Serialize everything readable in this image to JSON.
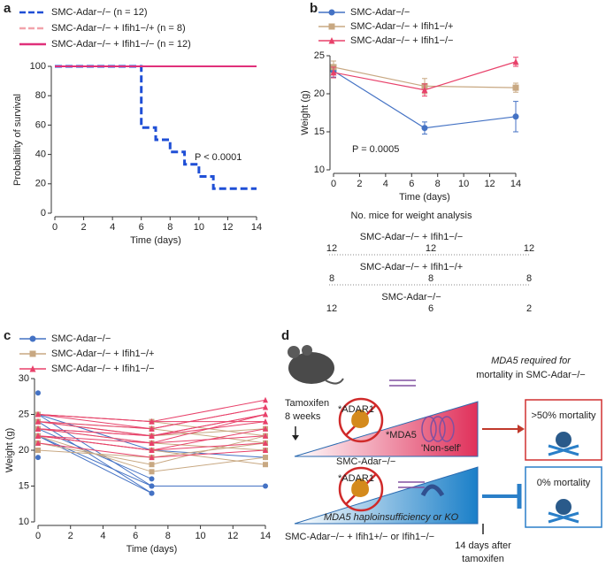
{
  "panel_labels": [
    "a",
    "b",
    "c",
    "d"
  ],
  "chart_data": [
    {
      "type": "step",
      "xlabel": "Time (days)",
      "ylabel": "Probability of survival",
      "xlim": [
        0,
        14
      ],
      "xticks": [
        0,
        2,
        4,
        6,
        8,
        10,
        12,
        14
      ],
      "ylim": [
        0,
        100
      ],
      "yticks": [
        0,
        20,
        40,
        60,
        80,
        100
      ],
      "annotation": "P < 0.0001",
      "series": [
        {
          "name": "SMC-Adar−/− (n = 12)",
          "color": "#1f4fd6",
          "dash": true,
          "x": [
            0,
            6,
            7,
            8,
            9,
            10,
            11,
            14
          ],
          "values": [
            100,
            58.3,
            50,
            41.7,
            33.3,
            25,
            16.7,
            16.7
          ]
        },
        {
          "name": "SMC-Adar−/− + Ifih1−/+ (n = 8)",
          "color": "#f2a3ab",
          "dash": true,
          "x": [
            0,
            14
          ],
          "values": [
            100,
            100
          ]
        },
        {
          "name": "SMC-Adar−/− + Ifih1−/− (n = 12)",
          "color": "#e0307a",
          "dash": false,
          "x": [
            0,
            14
          ],
          "values": [
            100,
            100
          ]
        }
      ]
    },
    {
      "type": "errorbar-line",
      "xlabel": "Time (days)",
      "ylabel": "Weight (g)",
      "xlim": [
        0,
        14
      ],
      "xticks": [
        0,
        2,
        4,
        6,
        8,
        10,
        12,
        14
      ],
      "ylim": [
        10,
        25
      ],
      "yticks": [
        10,
        15,
        20,
        25
      ],
      "annotation": "P = 0.0005",
      "x": [
        0,
        7,
        14
      ],
      "series": [
        {
          "name": "SMC-Adar−/−",
          "color": "#4472c4",
          "marker": "circle",
          "values": [
            23,
            15.5,
            17
          ],
          "errors": [
            0.8,
            0.8,
            2
          ]
        },
        {
          "name": "SMC-Adar−/− + Ifih1−/+",
          "color": "#c8a882",
          "marker": "square",
          "values": [
            23.5,
            21,
            20.8
          ],
          "errors": [
            0.8,
            1,
            0.6
          ]
        },
        {
          "name": "SMC-Adar−/− + Ifih1−/−",
          "color": "#e8416a",
          "marker": "triangle",
          "values": [
            22.8,
            20.5,
            24.2
          ],
          "errors": [
            0.7,
            0.8,
            0.6
          ]
        }
      ]
    },
    {
      "type": "line",
      "xlabel": "Time (days)",
      "ylabel": "Weight (g)",
      "xlim": [
        0,
        14
      ],
      "xticks": [
        0,
        2,
        4,
        6,
        8,
        10,
        12,
        14
      ],
      "ylim": [
        10,
        30
      ],
      "yticks": [
        10,
        15,
        20,
        25,
        30
      ],
      "x": [
        0,
        7,
        14
      ],
      "series": [
        {
          "name": "SMC-Adar−/−",
          "color": "#4472c4",
          "marker": "circle",
          "mice": [
            [
              28,
              null,
              null
            ],
            [
              25,
              20,
              19
            ],
            [
              25,
              15,
              15
            ],
            [
              24,
              14,
              null
            ],
            [
              23,
              16,
              null
            ],
            [
              22,
              14,
              null
            ],
            [
              22,
              15,
              null
            ],
            [
              21,
              null,
              null
            ],
            [
              20,
              null,
              null
            ],
            [
              19,
              null,
              null
            ],
            [
              23,
              null,
              null
            ],
            [
              25,
              null,
              null
            ]
          ]
        },
        {
          "name": "SMC-Adar−/− + Ifih1−/+",
          "color": "#c8a882",
          "marker": "square",
          "mice": [
            [
              25,
              24,
              22
            ],
            [
              24,
              23,
              21
            ],
            [
              24,
              22,
              23
            ],
            [
              23,
              21,
              20
            ],
            [
              22,
              17,
              19
            ],
            [
              22,
              20,
              18
            ],
            [
              21,
              18,
              22
            ],
            [
              20,
              19,
              21
            ]
          ]
        },
        {
          "name": "SMC-Adar−/− + Ifih1−/−",
          "color": "#e8416a",
          "marker": "triangle",
          "mice": [
            [
              25,
              24,
              27
            ],
            [
              25,
              23,
              26
            ],
            [
              24,
              22,
              25
            ],
            [
              23,
              21,
              25
            ],
            [
              23,
              22,
              24
            ],
            [
              22,
              20,
              23
            ],
            [
              22,
              21,
              22
            ],
            [
              24,
              23,
              26
            ],
            [
              21,
              19,
              20
            ],
            [
              23,
              22,
              25
            ],
            [
              25,
              24,
              24
            ],
            [
              22,
              20,
              21
            ]
          ]
        }
      ]
    }
  ],
  "mice_table": {
    "title": "No. mice for weight analysis",
    "groups": [
      {
        "name": "SMC-Adar−/− + Ifih1−/−",
        "counts": [
          12,
          12,
          12
        ]
      },
      {
        "name": "SMC-Adar−/− + Ifih1−/+",
        "counts": [
          8,
          8,
          8
        ]
      },
      {
        "name": "SMC-Adar−/−",
        "counts": [
          12,
          6,
          2
        ]
      }
    ]
  },
  "diagram": {
    "heading": [
      "MDA5 required for",
      "mortality in SMC-Adar−/−"
    ],
    "tamoxifen": [
      "Tamoxifen",
      "8 weeks"
    ],
    "adar1_top": "*ADAR1",
    "mda5": "*MDA5",
    "non_self": "'Non-self'",
    "top_group": "SMC-Adar−/−",
    "top_outcome": ">50% mortality",
    "adar1_bottom": "*ADAR1",
    "haplo": "MDA5 haploinsufficiency or KO",
    "bottom_group": "SMC-Adar−/− + Ifih1+/− or Ifih1−/−",
    "bottom_outcome": "0% mortality",
    "after": [
      "14 days after",
      "tamoxifen"
    ]
  }
}
